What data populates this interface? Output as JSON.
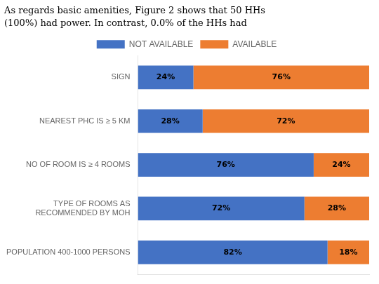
{
  "chart_data": {
    "type": "bar",
    "title": "As regards basic amenities, Figure 2 shows that 50 HHs",
    "subtitle": "(100%) had power. In contrast, 0.0% of the HHs had",
    "categories": [
      "POPULATION 400-1000 PERSONS",
      "TYPE OF ROOMS AS\nRECOMMENDED BY MOH",
      "NO OF ROOM IS ≥ 4 ROOMS",
      "NEAREST PHC IS ≥ 5 KM",
      "SIGN"
    ],
    "series": [
      {
        "name": "NOT AVAILABLE",
        "color": "#4472C4",
        "values": [
          82,
          72,
          76,
          28,
          24
        ],
        "value_labels": [
          "82%",
          "72%",
          "76%",
          "28%",
          "24%"
        ]
      },
      {
        "name": "AVAILABLE",
        "color": "#ED7D31",
        "values": [
          18,
          28,
          24,
          72,
          76
        ],
        "value_labels": [
          "18%",
          "28%",
          "24%",
          "72%",
          "76%"
        ]
      }
    ],
    "orientation": "horizontal",
    "stacked": true,
    "data_labels": true,
    "xlim": [
      0,
      100
    ],
    "tick_labels": "y",
    "grid": false,
    "legend": "top"
  }
}
